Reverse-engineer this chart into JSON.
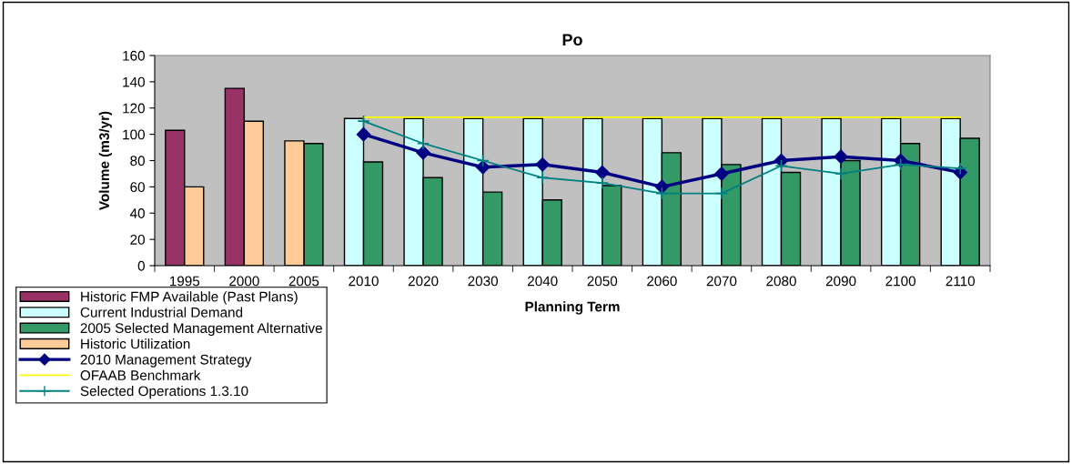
{
  "chart_data": {
    "type": "bar",
    "title": "Po",
    "xlabel": "Planning Term",
    "ylabel": "Volume (m3/yr)",
    "categories": [
      "1995",
      "2000",
      "2005",
      "2010",
      "2020",
      "2030",
      "2040",
      "2050",
      "2060",
      "2070",
      "2080",
      "2090",
      "2100",
      "2110"
    ],
    "ylim": [
      0,
      160
    ],
    "yticks": [
      0,
      20,
      40,
      60,
      80,
      100,
      120,
      140,
      160
    ],
    "grid": false,
    "legend": "bottom left",
    "series": [
      {
        "name": "Historic FMP Available (Past Plans)",
        "color": "#993366",
        "values": [
          103,
          135,
          null,
          null,
          null,
          null,
          null,
          null,
          null,
          null,
          null,
          null,
          null,
          null
        ]
      },
      {
        "name": "Current Industrial Demand",
        "color": "#ccffff",
        "values": [
          null,
          null,
          null,
          112,
          112,
          112,
          112,
          112,
          112,
          112,
          112,
          112,
          112,
          112
        ]
      },
      {
        "name": "2005 Selected Management Alternative",
        "color": "#339966",
        "values": [
          null,
          null,
          93,
          79,
          67,
          56,
          50,
          61,
          86,
          77,
          71,
          80,
          93,
          97
        ]
      },
      {
        "name": "Historic Utilization",
        "color": "#ffcc99",
        "values": [
          60,
          110,
          95,
          null,
          null,
          null,
          null,
          null,
          null,
          null,
          null,
          null,
          null,
          null
        ]
      },
      {
        "name": "2010 Management Strategy",
        "type": "line",
        "color": "#000080",
        "marker": "diamond",
        "values": [
          null,
          null,
          null,
          100,
          86,
          75,
          77,
          71,
          60,
          70,
          80,
          83,
          80,
          71
        ]
      },
      {
        "name": "OFAAB Benchmark",
        "type": "line",
        "color": "#ffff00",
        "marker": "none",
        "values": [
          null,
          null,
          null,
          113,
          113,
          113,
          113,
          113,
          113,
          113,
          113,
          113,
          113,
          113
        ]
      },
      {
        "name": "Selected Operations 1.3.10",
        "type": "line",
        "color": "#008080",
        "marker": "cross",
        "values": [
          null,
          null,
          null,
          110,
          93,
          80,
          67,
          63,
          55,
          55,
          76,
          70,
          77,
          74
        ]
      }
    ]
  }
}
